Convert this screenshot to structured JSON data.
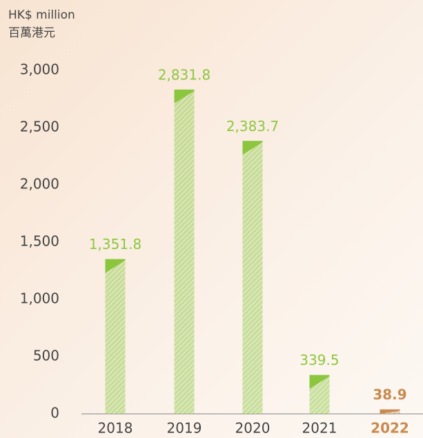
{
  "chart_data": {
    "type": "bar",
    "unit_label": "HK$ million",
    "unit_label_zh": "百萬港元",
    "categories": [
      "2018",
      "2019",
      "2020",
      "2021",
      "2022"
    ],
    "values": [
      1351.8,
      2831.8,
      2383.7,
      339.5,
      38.9
    ],
    "value_labels": [
      "1,351.8",
      "2,831.8",
      "2,383.7",
      "339.5",
      "38.9"
    ],
    "colors": [
      "#8cc63f",
      "#8cc63f",
      "#8cc63f",
      "#8cc63f",
      "#c98a4f"
    ],
    "bold": [
      false,
      false,
      false,
      false,
      true
    ],
    "ylim": [
      0,
      3000
    ],
    "yticks": [
      0,
      500,
      {
        "value": 1000,
        "label": "1,000"
      },
      {
        "value": 1500,
        "label": "1,500"
      },
      {
        "value": 2000,
        "label": "2,000"
      },
      {
        "value": 2500,
        "label": "2,500"
      },
      {
        "value": 3000,
        "label": "3,000"
      }
    ]
  }
}
